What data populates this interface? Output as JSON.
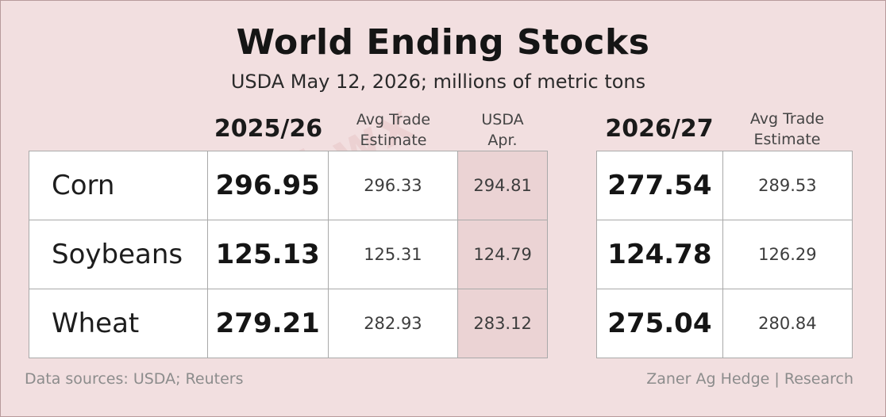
{
  "title": "World Ending Stocks",
  "subtitle": "USDA May 12, 2026; millions of metric tons",
  "watermark": "@kannbwx",
  "headers": {
    "season_a": "2025/26",
    "avg_est_line1": "Avg Trade",
    "avg_est_line2": "Estimate",
    "usda_line1": "USDA",
    "usda_line2": "Apr.",
    "season_b": "2026/27"
  },
  "colors": {
    "background": "#f2dfe0",
    "usda_apr_fill": "#ebd3d4"
  },
  "chart_data": {
    "type": "table",
    "title": "World Ending Stocks",
    "subtitle": "USDA May 12, 2026; millions of metric tons",
    "columns": [
      "",
      "2025/26",
      "Avg Trade Estimate",
      "USDA Apr.",
      "2026/27",
      "Avg Trade Estimate"
    ],
    "rows": [
      {
        "commodity": "Corn",
        "y2025_26": "296.95",
        "y2025_26_avg_est": "296.33",
        "usda_apr": "294.81",
        "y2026_27": "277.54",
        "y2026_27_avg_est": "289.53"
      },
      {
        "commodity": "Soybeans",
        "y2025_26": "125.13",
        "y2025_26_avg_est": "125.31",
        "usda_apr": "124.79",
        "y2026_27": "124.78",
        "y2026_27_avg_est": "126.29"
      },
      {
        "commodity": "Wheat",
        "y2025_26": "279.21",
        "y2025_26_avg_est": "282.93",
        "usda_apr": "283.12",
        "y2026_27": "275.04",
        "y2026_27_avg_est": "280.84"
      }
    ]
  },
  "footer": {
    "sources": "Data sources: USDA; Reuters",
    "credit": "Zaner Ag Hedge | Research"
  }
}
